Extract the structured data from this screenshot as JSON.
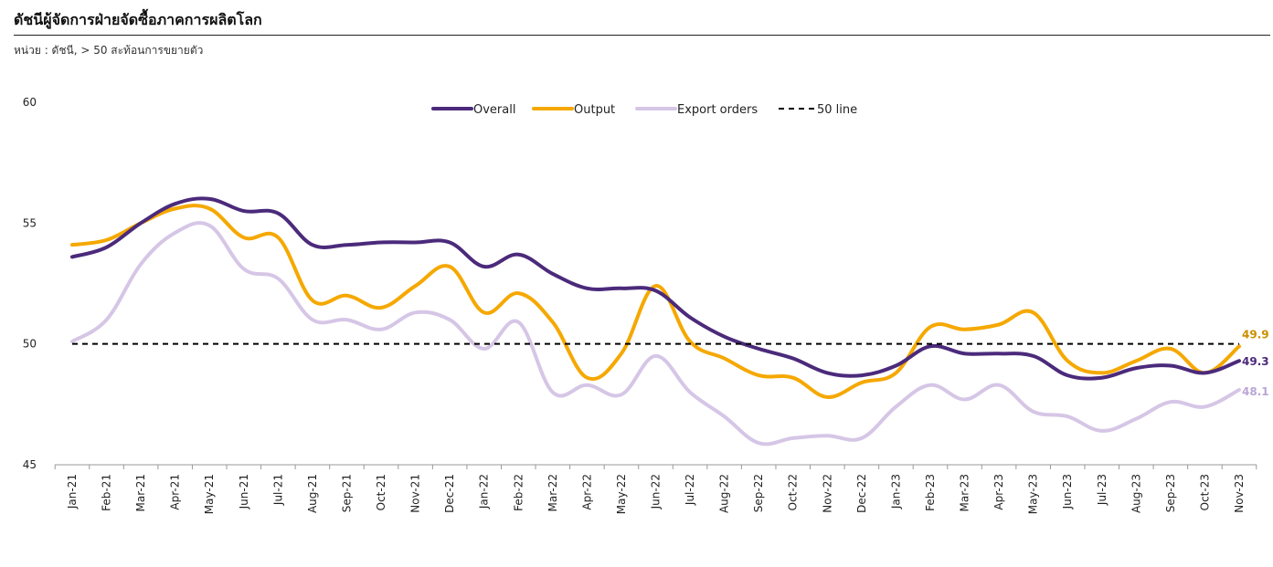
{
  "header": {
    "title": "ดัชนีผู้จัดการฝ่ายจัดซื้อภาคการผลิตโลก",
    "subtitle": "หน่วย : ดัชนี, > 50 สะท้อนการขยายตัว"
  },
  "chart_data": {
    "type": "line",
    "title": "ดัชนีผู้จัดการฝ่ายจัดซื้อภาคการผลิตโลก",
    "xlabel": "",
    "ylabel": "",
    "ylim": [
      45,
      60
    ],
    "yticks": [
      45,
      50,
      55,
      60
    ],
    "legend_position": "top-center",
    "grid": false,
    "categories": [
      "Jan-21",
      "Feb-21",
      "Mar-21",
      "Apr-21",
      "May-21",
      "Jun-21",
      "Jul-21",
      "Aug-21",
      "Sep-21",
      "Oct-21",
      "Nov-21",
      "Dec-21",
      "Jan-22",
      "Feb-22",
      "Mar-22",
      "Apr-22",
      "May-22",
      "Jun-22",
      "Jul-22",
      "Aug-22",
      "Sep-22",
      "Oct-22",
      "Nov-22",
      "Dec-22",
      "Jan-23",
      "Feb-23",
      "Mar-23",
      "Apr-23",
      "May-23",
      "Jun-23",
      "Jul-23",
      "Aug-23",
      "Sep-23",
      "Oct-23",
      "Nov-23"
    ],
    "series": [
      {
        "name": "Overall",
        "color": "#4b2a7b",
        "values": [
          53.6,
          54.0,
          55.0,
          55.8,
          56.0,
          55.5,
          55.4,
          54.1,
          54.1,
          54.2,
          54.2,
          54.2,
          53.2,
          53.7,
          52.9,
          52.3,
          52.3,
          52.2,
          51.1,
          50.3,
          49.8,
          49.4,
          48.8,
          48.7,
          49.1,
          49.9,
          49.6,
          49.6,
          49.5,
          48.7,
          48.6,
          49.0,
          49.1,
          48.8,
          49.3
        ],
        "end_label": "49.3"
      },
      {
        "name": "Output",
        "color": "#f5a800",
        "values": [
          54.1,
          54.3,
          55.0,
          55.6,
          55.6,
          54.4,
          54.4,
          51.8,
          52.0,
          51.5,
          52.4,
          53.2,
          51.3,
          52.1,
          50.9,
          48.6,
          49.6,
          52.4,
          50.1,
          49.4,
          48.7,
          48.6,
          47.8,
          48.4,
          48.8,
          50.7,
          50.6,
          50.8,
          51.3,
          49.3,
          48.8,
          49.3,
          49.8,
          48.8,
          49.9
        ],
        "end_label": "49.9"
      },
      {
        "name": "Export orders",
        "color": "#d6c6e6",
        "values": [
          50.1,
          51.0,
          53.3,
          54.6,
          54.9,
          53.1,
          52.7,
          51.0,
          51.0,
          50.6,
          51.3,
          51.0,
          49.8,
          50.9,
          48.0,
          48.3,
          47.9,
          49.5,
          48.0,
          47.0,
          45.9,
          46.1,
          46.2,
          46.1,
          47.4,
          48.3,
          47.7,
          48.3,
          47.2,
          47.0,
          46.4,
          46.9,
          47.6,
          47.4,
          48.1
        ],
        "end_label": "48.1"
      },
      {
        "name": "50 line",
        "color": "#000000",
        "dashed": true,
        "values": [
          50,
          50,
          50,
          50,
          50,
          50,
          50,
          50,
          50,
          50,
          50,
          50,
          50,
          50,
          50,
          50,
          50,
          50,
          50,
          50,
          50,
          50,
          50,
          50,
          50,
          50,
          50,
          50,
          50,
          50,
          50,
          50,
          50,
          50,
          50
        ]
      }
    ]
  }
}
